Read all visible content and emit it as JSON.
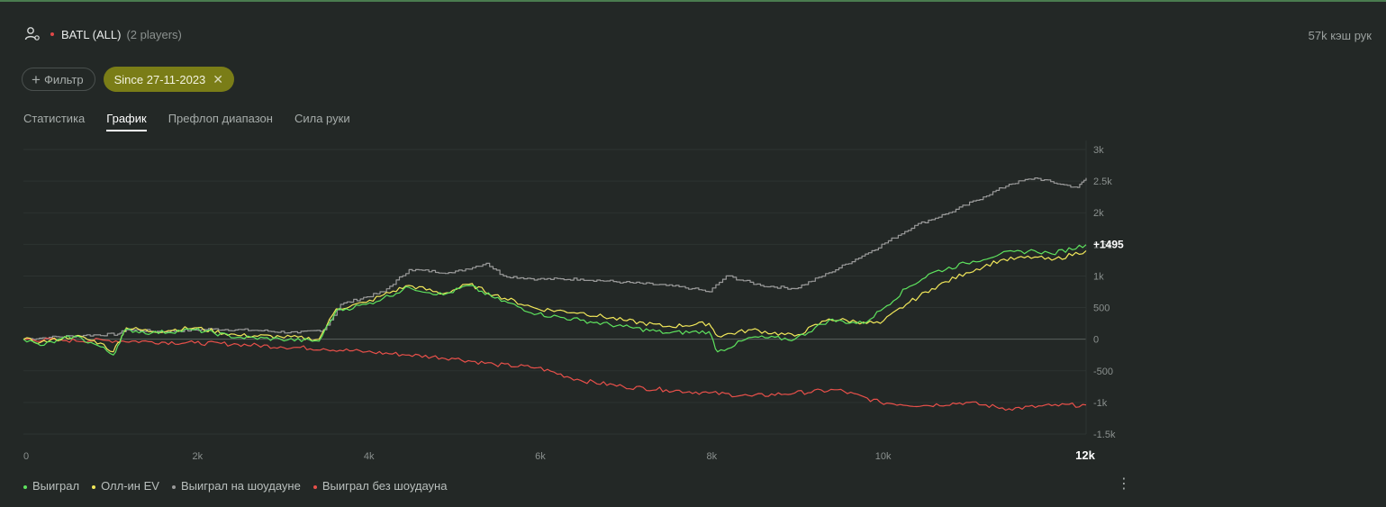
{
  "header": {
    "title": "BATL (ALL)",
    "players": "(2 players)",
    "hands": "57k кэш рук"
  },
  "filters": {
    "filter_label": "Фильтр",
    "chip_label": "Since 27-11-2023"
  },
  "tabs": [
    {
      "label": "Статистика",
      "active": false
    },
    {
      "label": "График",
      "active": true
    },
    {
      "label": "Префлоп диапазон",
      "active": false
    },
    {
      "label": "Сила руки",
      "active": false
    }
  ],
  "colors": {
    "won": "#5ee35e",
    "allin_ev": "#f2e85a",
    "showdown": "#9a9a9a",
    "non_showdown": "#e8504a",
    "chip": "#7a7d17"
  },
  "chart_data": {
    "type": "line",
    "x_ticks": [
      "0",
      "2k",
      "4k",
      "6k",
      "8k",
      "10k",
      "12k"
    ],
    "y_ticks": [
      "3k",
      "2.5k",
      "2k",
      "1.5k",
      "1k",
      "500",
      "0",
      "-500",
      "-1k",
      "-1.5k"
    ],
    "xlim": [
      0,
      12400
    ],
    "ylim": [
      -1500,
      3000
    ],
    "end_label": "+1495",
    "legend_position": "bottom-left",
    "series": [
      {
        "name": "Выиграл",
        "x": [
          0,
          200,
          600,
          900,
          1050,
          1150,
          1200,
          1500,
          2000,
          2500,
          3000,
          3450,
          3650,
          4000,
          4200,
          4500,
          4900,
          5200,
          5500,
          6000,
          6500,
          7000,
          7500,
          8000,
          8100,
          8500,
          9000,
          9400,
          9800,
          10000,
          10300,
          10600,
          11000,
          11400,
          11800,
          12000,
          12400
        ],
        "y": [
          0,
          -100,
          50,
          -120,
          -250,
          50,
          150,
          100,
          150,
          30,
          0,
          -30,
          450,
          550,
          650,
          820,
          700,
          850,
          650,
          400,
          300,
          200,
          100,
          120,
          -200,
          30,
          0,
          300,
          250,
          450,
          800,
          1050,
          1200,
          1350,
          1400,
          1350,
          1495
        ]
      },
      {
        "name": "Олл-ин EV",
        "x": [
          0,
          200,
          600,
          900,
          1050,
          1150,
          1200,
          1500,
          2000,
          2500,
          3000,
          3450,
          3650,
          4000,
          4200,
          4500,
          4900,
          5200,
          5500,
          6000,
          6500,
          7000,
          7500,
          8000,
          8100,
          8500,
          9000,
          9400,
          9800,
          10000,
          10300,
          10600,
          11000,
          11400,
          11800,
          12000,
          12400
        ],
        "y": [
          0,
          -50,
          50,
          -60,
          -200,
          60,
          180,
          120,
          180,
          60,
          40,
          0,
          480,
          580,
          700,
          850,
          720,
          870,
          700,
          480,
          420,
          300,
          200,
          250,
          50,
          150,
          50,
          320,
          270,
          250,
          550,
          800,
          1050,
          1250,
          1300,
          1250,
          1400
        ]
      },
      {
        "name": "Выиграл на шоудауне",
        "x": [
          0,
          300,
          700,
          1100,
          1200,
          1600,
          2200,
          2700,
          3200,
          3500,
          3700,
          4200,
          4500,
          5000,
          5400,
          5600,
          6000,
          6500,
          7000,
          7500,
          7800,
          8000,
          8200,
          8600,
          9000,
          9400,
          9900,
          10400,
          10800,
          11200,
          11500,
          11800,
          12100,
          12300,
          12400
        ],
        "y": [
          0,
          30,
          60,
          80,
          150,
          120,
          160,
          140,
          100,
          150,
          550,
          750,
          1100,
          1050,
          1200,
          1000,
          950,
          950,
          900,
          850,
          800,
          750,
          1000,
          850,
          800,
          1050,
          1400,
          1800,
          2000,
          2250,
          2450,
          2550,
          2450,
          2400,
          2550
        ]
      },
      {
        "name": "Выиграл без шоудауна",
        "x": [
          0,
          500,
          1000,
          1500,
          2000,
          2500,
          3000,
          3500,
          4000,
          4500,
          5000,
          5500,
          6000,
          6500,
          7000,
          7500,
          8000,
          8500,
          9000,
          9500,
          10000,
          10500,
          11000,
          11500,
          12000,
          12400
        ],
        "y": [
          0,
          -20,
          -20,
          -40,
          -60,
          -80,
          -120,
          -150,
          -200,
          -250,
          -300,
          -400,
          -450,
          -650,
          -750,
          -800,
          -850,
          -900,
          -850,
          -800,
          -1000,
          -1050,
          -1000,
          -1100,
          -1050,
          -1040
        ]
      }
    ]
  }
}
